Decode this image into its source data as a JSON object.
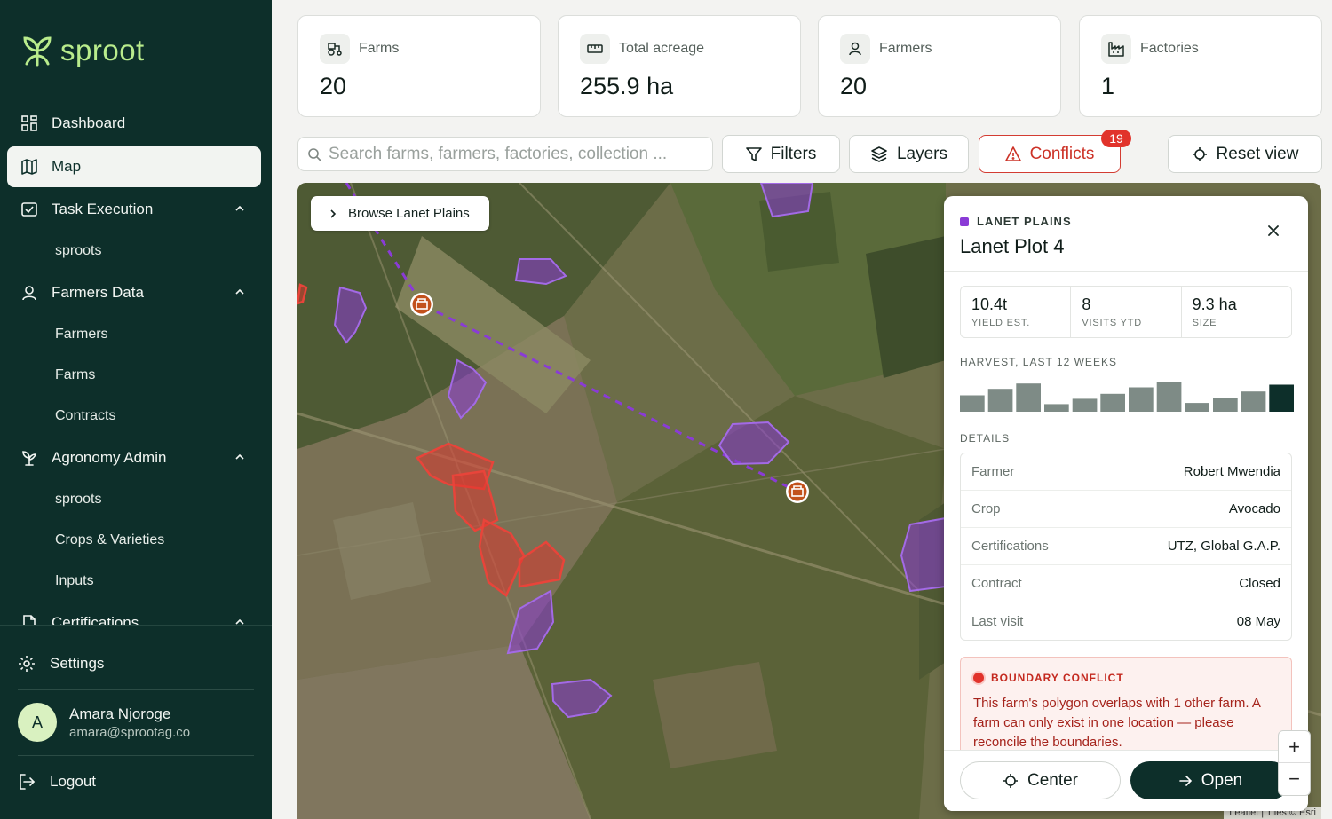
{
  "app": {
    "logo_text": "sproot"
  },
  "sidebar": {
    "items": [
      {
        "label": "Dashboard",
        "icon": "grid-icon"
      },
      {
        "label": "Map",
        "icon": "map-icon",
        "active": true
      },
      {
        "label": "Task Execution",
        "icon": "checkbox-icon"
      },
      {
        "label": "Farmers Data",
        "icon": "user-icon"
      },
      {
        "label": "Agronomy Admin",
        "icon": "sprout-icon"
      },
      {
        "label": "Certifications",
        "icon": "document-icon"
      }
    ],
    "task_execution_sub": [
      "sproots"
    ],
    "farmers_data_sub": [
      "Farmers",
      "Farms",
      "Contracts"
    ],
    "agronomy_admin_sub": [
      "sproots",
      "Crops & Varieties",
      "Inputs"
    ],
    "settings_label": "Settings",
    "logout_label": "Logout",
    "user": {
      "initial": "A",
      "name": "Amara Njoroge",
      "email": "amara@sprootag.co"
    }
  },
  "stats": [
    {
      "label": "Farms",
      "value": "20",
      "icon": "tractor-icon"
    },
    {
      "label": "Total acreage",
      "value": "255.9 ha",
      "icon": "ruler-icon"
    },
    {
      "label": "Farmers",
      "value": "20",
      "icon": "user-icon"
    },
    {
      "label": "Factories",
      "value": "1",
      "icon": "factory-icon"
    }
  ],
  "toolbar": {
    "search_placeholder": "Search farms, farmers, factories, collection ...",
    "filters_label": "Filters",
    "layers_label": "Layers",
    "conflicts_label": "Conflicts",
    "conflicts_count": "19",
    "reset_label": "Reset view"
  },
  "map": {
    "browse_label": "Browse Lanet Plains",
    "attribution": "Leaflet | Tiles © Esri",
    "zoom_in": "+",
    "zoom_out": "−"
  },
  "panel": {
    "region": "LANET PLAINS",
    "title": "Lanet Plot 4",
    "metrics": [
      {
        "value": "10.4t",
        "label": "YIELD EST."
      },
      {
        "value": "8",
        "label": "VISITS YTD"
      },
      {
        "value": "9.3 ha",
        "label": "SIZE"
      }
    ],
    "harvest_label": "HARVEST, LAST 12 WEEKS",
    "harvest": [
      0.43,
      0.6,
      0.74,
      0.2,
      0.34,
      0.47,
      0.64,
      0.77,
      0.23,
      0.37,
      0.53,
      0.71
    ],
    "details_label": "DETAILS",
    "details": [
      {
        "key": "Farmer",
        "value": "Robert Mwendia"
      },
      {
        "key": "Crop",
        "value": "Avocado"
      },
      {
        "key": "Certifications",
        "value": "UTZ, Global G.A.P."
      },
      {
        "key": "Contract",
        "value": "Closed"
      },
      {
        "key": "Last visit",
        "value": "08 May"
      }
    ],
    "conflict_title": "BOUNDARY CONFLICT",
    "conflict_text": "This farm's polygon overlaps with 1 other farm. A farm can only exist in one location — please reconcile the boundaries.",
    "center_label": "Center",
    "open_label": "Open"
  },
  "colors": {
    "brand_dark": "#0d2f2a",
    "brand_light": "#b9ec8c",
    "conflict": "#e1332b",
    "farm_polygon": "#8a3bd6"
  }
}
